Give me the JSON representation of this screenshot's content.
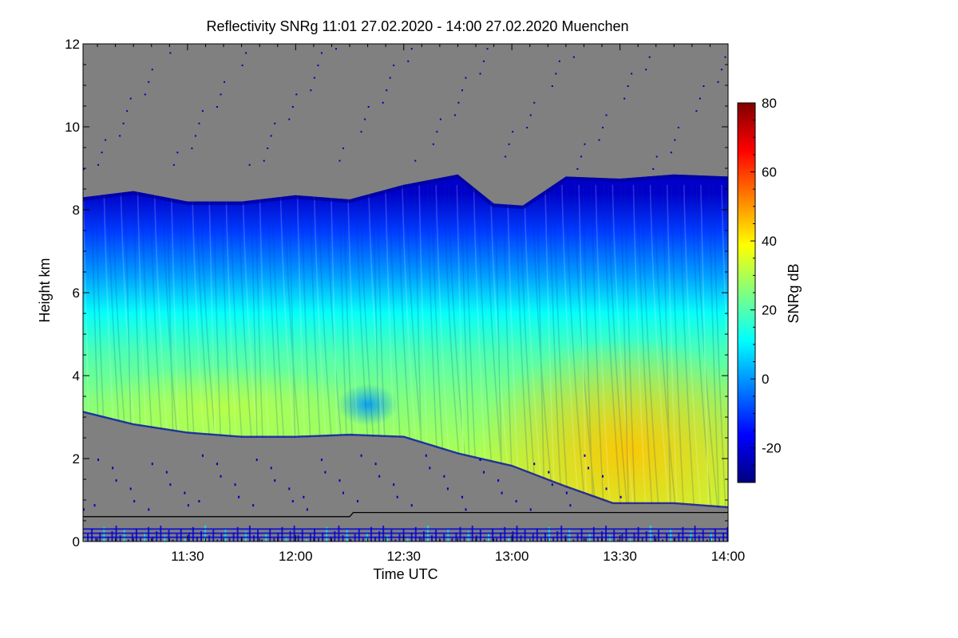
{
  "chart_data": {
    "type": "heatmap",
    "title": "Reflectivity SNRg   11:01 27.02.2020 - 14:00 27.02.2020 Muenchen",
    "xlabel": "Time UTC",
    "ylabel": "Height km",
    "x_range_minutes_utc": [
      661,
      840
    ],
    "y_range_km": [
      0,
      12
    ],
    "x_ticks": [
      {
        "minute": 690,
        "label": "11:30"
      },
      {
        "minute": 720,
        "label": "12:00"
      },
      {
        "minute": 750,
        "label": "12:30"
      },
      {
        "minute": 780,
        "label": "13:00"
      },
      {
        "minute": 810,
        "label": "13:30"
      },
      {
        "minute": 840,
        "label": "14:00"
      }
    ],
    "y_ticks": [
      {
        "value": 0,
        "label": "0"
      },
      {
        "value": 2,
        "label": "2"
      },
      {
        "value": 4,
        "label": "4"
      },
      {
        "value": 6,
        "label": "6"
      },
      {
        "value": 8,
        "label": "8"
      },
      {
        "value": 10,
        "label": "10"
      },
      {
        "value": 12,
        "label": "12"
      }
    ],
    "colorbar": {
      "label": "SNRg dB",
      "range": [
        -30,
        80
      ],
      "ticks": [
        {
          "value": -20,
          "label": "-20"
        },
        {
          "value": 0,
          "label": "0"
        },
        {
          "value": 20,
          "label": "20"
        },
        {
          "value": 40,
          "label": "40"
        },
        {
          "value": 60,
          "label": "60"
        },
        {
          "value": 80,
          "label": "80"
        }
      ],
      "colors": [
        "#00007f",
        "#0000ff",
        "#0080ff",
        "#00ffff",
        "#80ff80",
        "#ffff00",
        "#ff8000",
        "#ff0000",
        "#7f0000"
      ]
    },
    "no_signal_color": "#808080",
    "cloud_top_km": [
      {
        "minute": 661,
        "value": 8.3
      },
      {
        "minute": 675,
        "value": 8.45
      },
      {
        "minute": 690,
        "value": 8.2
      },
      {
        "minute": 705,
        "value": 8.2
      },
      {
        "minute": 720,
        "value": 8.35
      },
      {
        "minute": 735,
        "value": 8.25
      },
      {
        "minute": 750,
        "value": 8.6
      },
      {
        "minute": 765,
        "value": 8.85
      },
      {
        "minute": 775,
        "value": 8.15
      },
      {
        "minute": 783,
        "value": 8.1
      },
      {
        "minute": 795,
        "value": 8.8
      },
      {
        "minute": 810,
        "value": 8.75
      },
      {
        "minute": 825,
        "value": 8.85
      },
      {
        "minute": 840,
        "value": 8.8
      }
    ],
    "cloud_base_km": [
      {
        "minute": 661,
        "value": 3.1
      },
      {
        "minute": 675,
        "value": 2.8
      },
      {
        "minute": 690,
        "value": 2.6
      },
      {
        "minute": 705,
        "value": 2.5
      },
      {
        "minute": 720,
        "value": 2.5
      },
      {
        "minute": 735,
        "value": 2.55
      },
      {
        "minute": 750,
        "value": 2.5
      },
      {
        "minute": 765,
        "value": 2.1
      },
      {
        "minute": 780,
        "value": 1.8
      },
      {
        "minute": 795,
        "value": 1.3
      },
      {
        "minute": 808,
        "value": 0.9
      },
      {
        "minute": 825,
        "value": 0.9
      },
      {
        "minute": 840,
        "value": 0.8
      }
    ],
    "profile_dbz_by_height": [
      {
        "height_km": 8.4,
        "value": -22
      },
      {
        "height_km": 7.5,
        "value": -10
      },
      {
        "height_km": 6.5,
        "value": 0
      },
      {
        "height_km": 5.5,
        "value": 12
      },
      {
        "height_km": 4.5,
        "value": 20
      },
      {
        "height_km": 3.5,
        "value": 25
      },
      {
        "height_km": 2.0,
        "value": 30
      },
      {
        "height_km": 0.8,
        "value": 32
      }
    ],
    "intensity_peak": {
      "minute": 812,
      "height_km": 2.2,
      "value_db": 45
    },
    "weak_patch": {
      "minute": 740,
      "height_km": 3.3,
      "value_db": 0
    },
    "boundary_line_km": [
      {
        "minute": 661,
        "value": 0.6
      },
      {
        "minute": 735,
        "value": 0.6
      },
      {
        "minute": 736,
        "value": 0.7
      },
      {
        "minute": 840,
        "value": 0.7
      }
    ]
  }
}
